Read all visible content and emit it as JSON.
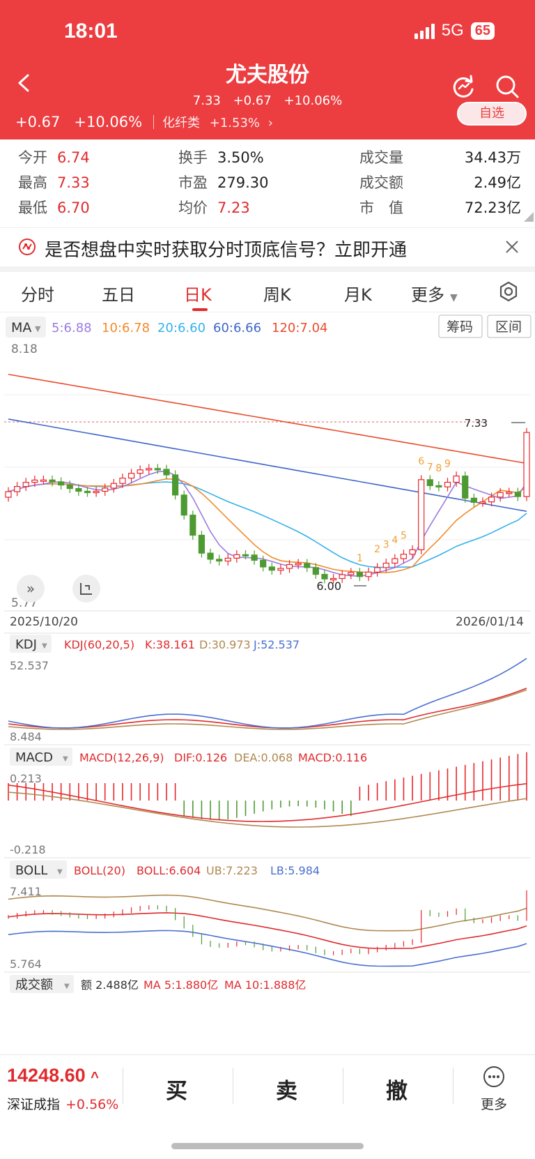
{
  "status": {
    "time": "18:01",
    "network": "5G",
    "battery": "65"
  },
  "header": {
    "title": "尤夫股份",
    "price": "7.33",
    "change": "+0.67",
    "change_pct": "+10.06%",
    "row_change": "+0.67",
    "row_change_pct": "+10.06%",
    "industry": "化纤类",
    "industry_pct": "+1.53%",
    "industry_arrow": "›",
    "self_select": "自选"
  },
  "stats": [
    {
      "label": "今开",
      "value": "6.74",
      "color": "red"
    },
    {
      "label": "换手",
      "value": "3.50%",
      "color": "dark"
    },
    {
      "label": "成交量",
      "value": "34.43万",
      "color": "dark"
    },
    {
      "label": "最高",
      "value": "7.33",
      "color": "red"
    },
    {
      "label": "市盈",
      "value": "279.30",
      "color": "dark"
    },
    {
      "label": "成交额",
      "value": "2.49亿",
      "color": "dark"
    },
    {
      "label": "最低",
      "value": "6.70",
      "color": "red"
    },
    {
      "label": "均价",
      "value": "7.23",
      "color": "red"
    },
    {
      "label": "市　值",
      "value": "72.23亿",
      "color": "dark"
    }
  ],
  "banner": {
    "text": "是否想盘中实时获取分时顶底信号？立即开通"
  },
  "tabs": [
    "分时",
    "五日",
    "日K",
    "周K",
    "月K",
    "更多"
  ],
  "active_tab": "日K",
  "colors": {
    "up": "#e8262b",
    "down": "#4e9a32",
    "ma5": "#9b7be0",
    "ma10": "#f08a2a",
    "ma20": "#33b1ea",
    "ma60": "#3e66c9",
    "ma120": "#ea4a2a"
  },
  "ma": {
    "selector": "MA",
    "ma5": "5:6.88",
    "ma10": "10:6.78",
    "ma20": "20:6.60",
    "ma60": "60:6.66",
    "ma120": "120:7.04",
    "btn_chip": "筹码",
    "btn_range": "区间"
  },
  "kline": {
    "y_top": "8.18",
    "y_bottom": "5.77",
    "high_label": "7.33",
    "low_label": "6.00",
    "date_start": "2025/10/20",
    "date_end": "2026/01/14",
    "td_counts": [
      "1",
      "2",
      "3",
      "4",
      "5",
      "6",
      "7",
      "8",
      "9"
    ]
  },
  "kdj": {
    "selector": "KDJ",
    "params": "KDJ(60,20,5)",
    "k": "K:38.161",
    "d": "D:30.973",
    "j": "J:52.537",
    "y_top": "52.537",
    "y_bottom": "8.484"
  },
  "macd": {
    "selector": "MACD",
    "params": "MACD(12,26,9)",
    "dif": "DIF:0.126",
    "dea": "DEA:0.068",
    "macd": "MACD:0.116",
    "y_top": "0.213",
    "y_bottom": "-0.218"
  },
  "boll": {
    "selector": "BOLL",
    "params": "BOLL(20)",
    "mid": "BOLL:6.604",
    "ub": "UB:7.223",
    "lb": "LB:5.984",
    "y_top": "7.411",
    "y_bottom": "5.764"
  },
  "volume": {
    "selector": "成交额",
    "amount": "额 2.488亿",
    "ma5": "MA 5:1.880亿",
    "ma10": "MA 10:1.888亿"
  },
  "bottom": {
    "index_value": "14248.60",
    "index_arrow": "^",
    "index_name": "深证成指",
    "index_change": "+0.56%",
    "buy": "买",
    "sell": "卖",
    "cancel": "撤",
    "more": "更多"
  }
}
